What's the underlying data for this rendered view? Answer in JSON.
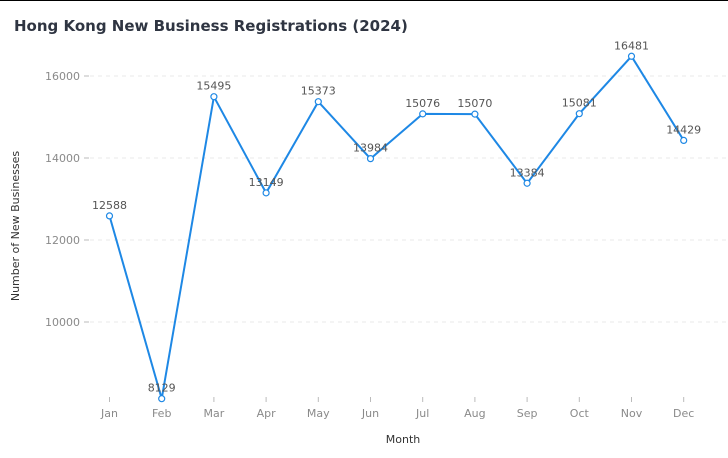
{
  "chart_data": {
    "type": "line",
    "title": "Hong Kong New Business Registrations (2024)",
    "xlabel": "Month",
    "ylabel": "Number of New Businesses",
    "categories": [
      "Jan",
      "Feb",
      "Mar",
      "Apr",
      "May",
      "Jun",
      "Jul",
      "Aug",
      "Sep",
      "Oct",
      "Nov",
      "Dec"
    ],
    "series": [
      {
        "values": [
          12588,
          8129,
          15495,
          13149,
          15373,
          13984,
          15076,
          15070,
          13384,
          15081,
          16481,
          14429
        ]
      }
    ],
    "yticks": [
      10000,
      12000,
      14000,
      16000
    ],
    "ylim": [
      8000,
      16700
    ],
    "grid": true,
    "legend": "none",
    "colors": {
      "line": "#1e88e5",
      "marker_fill": "#ffffff"
    }
  }
}
